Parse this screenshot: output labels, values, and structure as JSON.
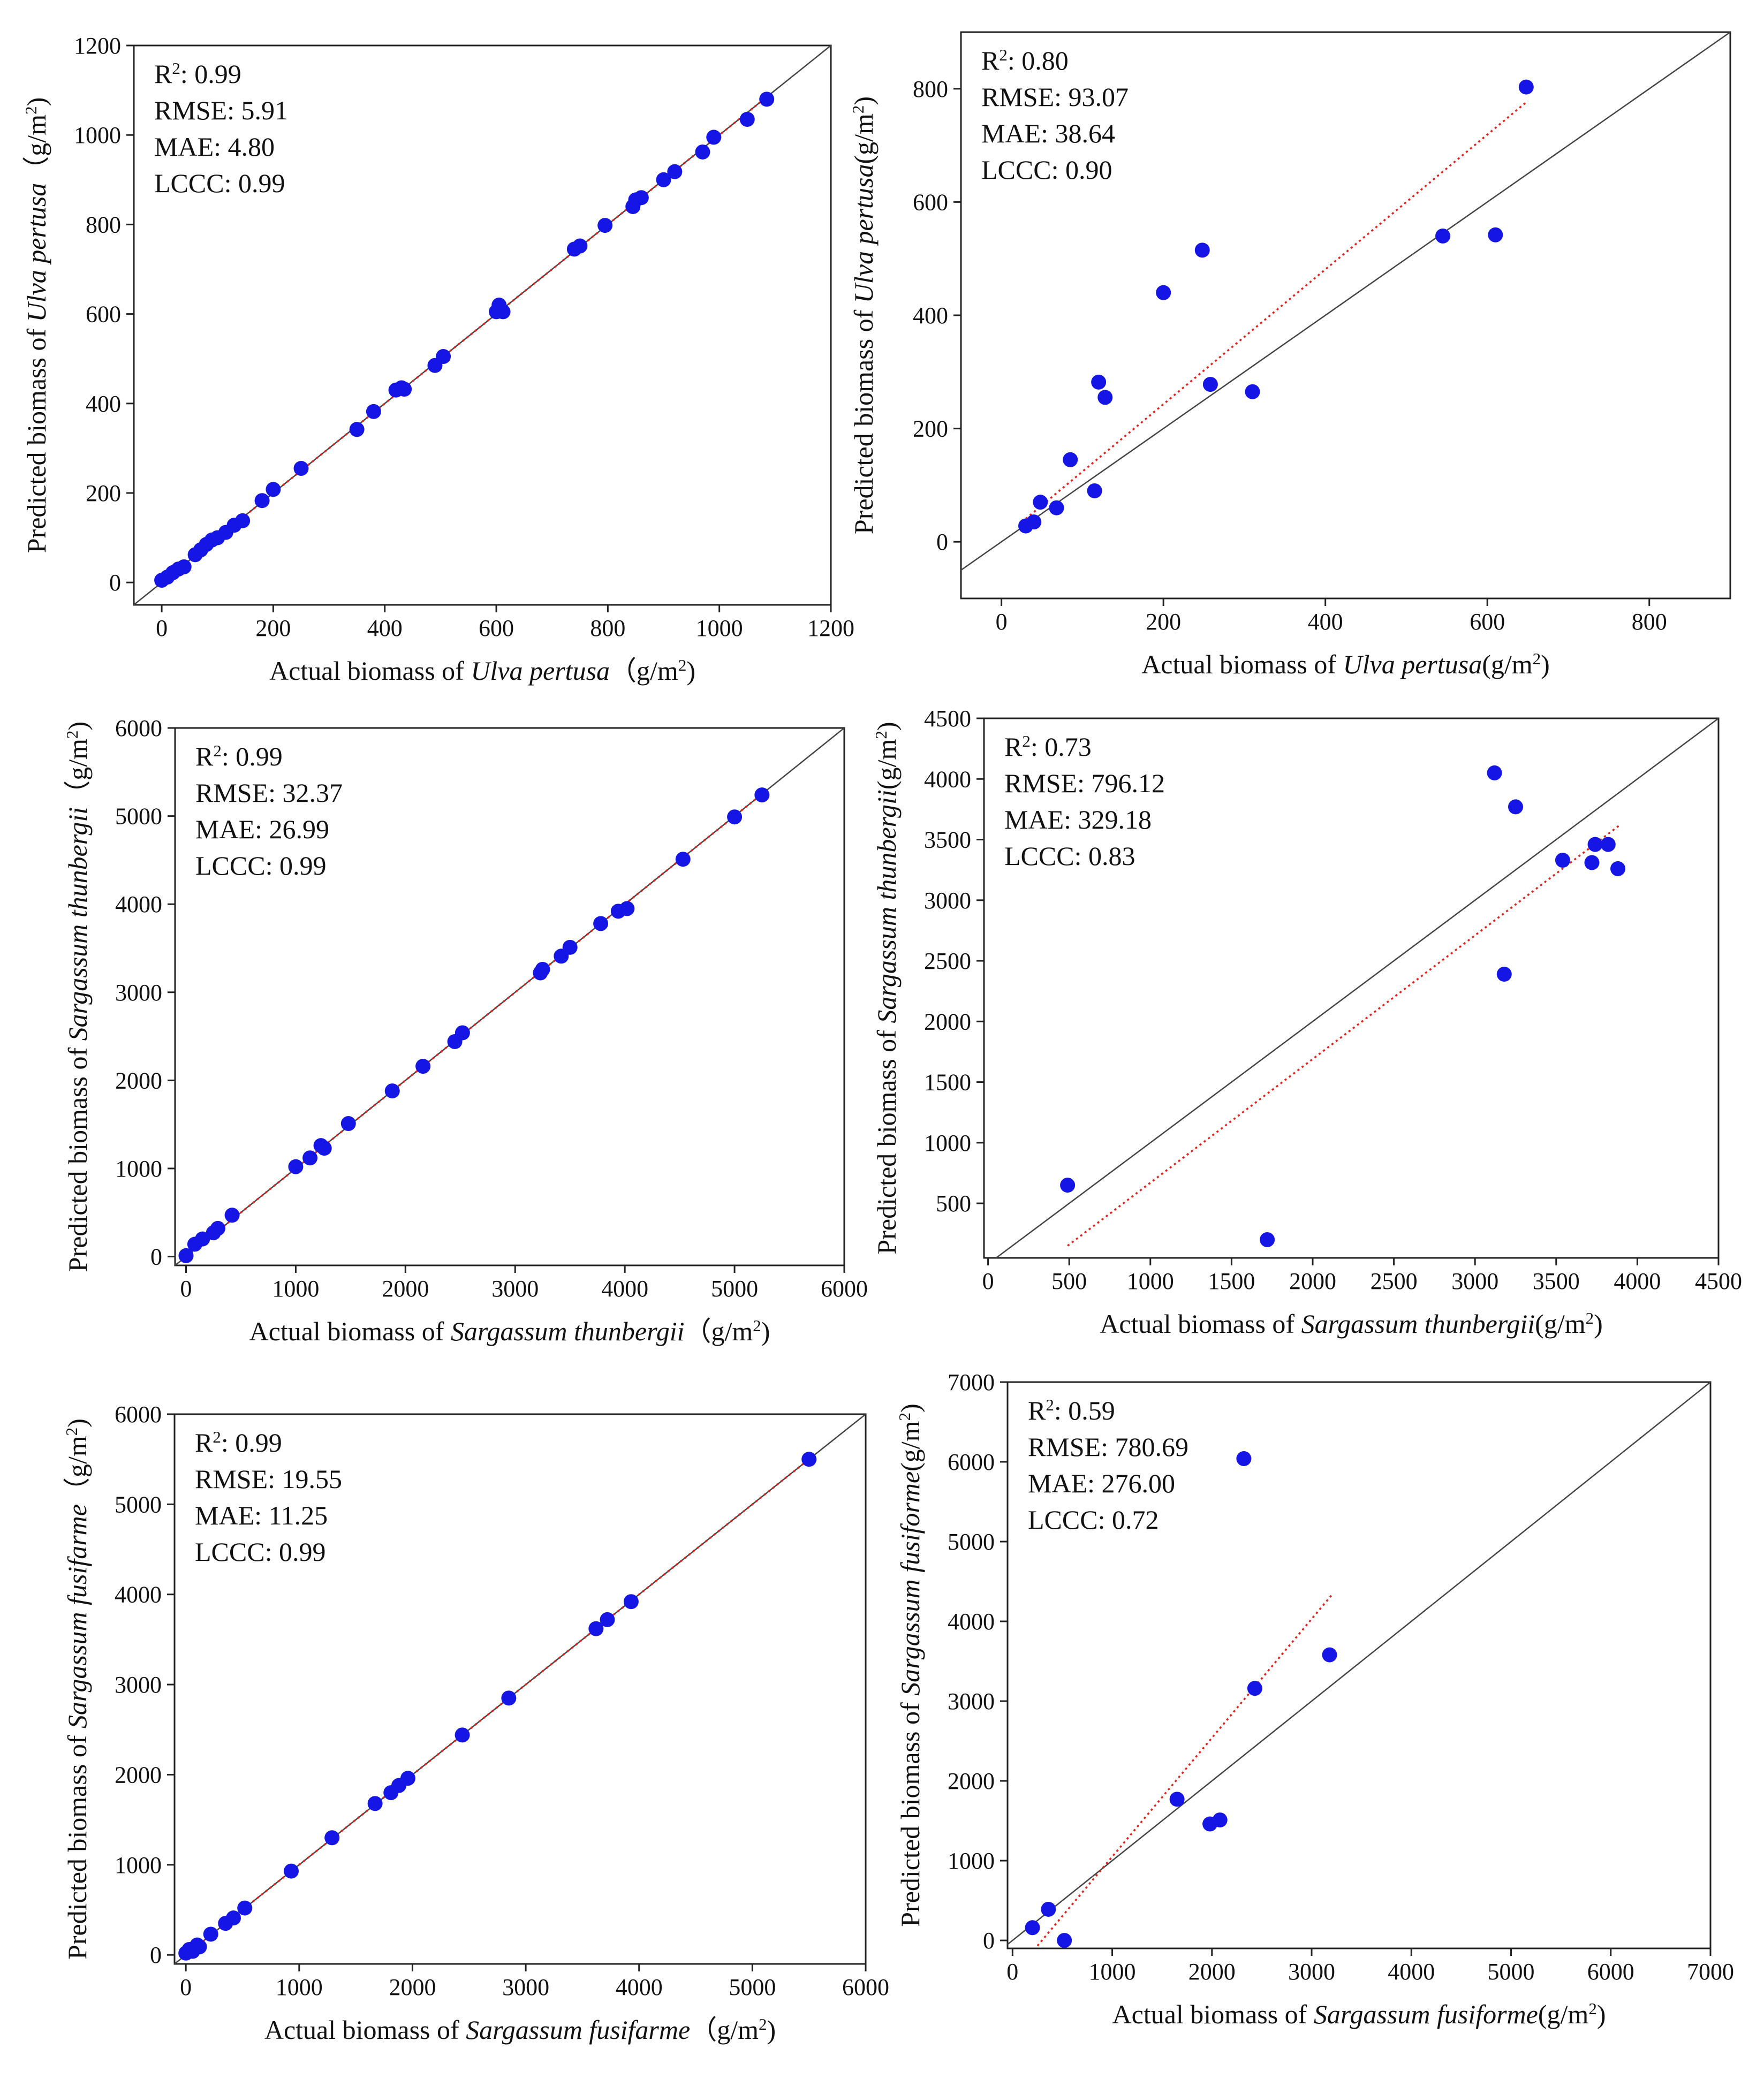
{
  "figure": {
    "description_hidden": ""
  },
  "chart_data": [
    {
      "id": "p1",
      "type": "scatter",
      "xlim": [
        -50,
        1200
      ],
      "ylim": [
        -50,
        1200
      ],
      "xticks": [
        0,
        200,
        400,
        600,
        800,
        1000,
        1200
      ],
      "yticks": [
        0,
        200,
        400,
        600,
        800,
        1000,
        1200
      ],
      "xlabel_pre": "Actual biomass of ",
      "xlabel_species": "Ulva pertusa",
      "xlabel_post": "（g/m",
      "ylabel_pre": "Predicted biomass of ",
      "ylabel_species": "Ulva pertusa",
      "ylabel_post": "（g/m",
      "label_close": ")",
      "stats": {
        "r2_prefix": "R",
        "r2_value": ": 0.99",
        "rmse": "RMSE: 5.91",
        "mae": "MAE: 4.80",
        "lccc": "LCCC: 0.99"
      },
      "fit": {
        "slope": 1.0,
        "intercept": 0,
        "x_range": [
          0,
          1085
        ]
      },
      "x": [
        0,
        10,
        20,
        30,
        40,
        60,
        70,
        80,
        90,
        100,
        115,
        130,
        145,
        180,
        200,
        250,
        350,
        380,
        420,
        430,
        435,
        490,
        505,
        600,
        605,
        608,
        612,
        740,
        750,
        795,
        845,
        850,
        860,
        900,
        920,
        970,
        990,
        1050,
        1085
      ],
      "y": [
        5,
        12,
        22,
        30,
        35,
        62,
        73,
        85,
        95,
        100,
        112,
        128,
        138,
        183,
        208,
        255,
        342,
        382,
        430,
        435,
        432,
        485,
        505,
        605,
        620,
        608,
        605,
        745,
        752,
        798,
        840,
        855,
        860,
        900,
        918,
        962,
        995,
        1035,
        1080
      ]
    },
    {
      "id": "p2",
      "type": "scatter",
      "xlim": [
        -50,
        900
      ],
      "ylim": [
        -100,
        900
      ],
      "xticks": [
        0,
        200,
        400,
        600,
        800
      ],
      "yticks": [
        0,
        200,
        400,
        600,
        800
      ],
      "xlabel_pre": "Actual biomass of ",
      "xlabel_species": "Ulva pertusa",
      "xlabel_post": "(g/m",
      "ylabel_pre": "Predicted biomass of ",
      "ylabel_species": "Ulva pertusa",
      "ylabel_post": "(g/m",
      "label_close": ")",
      "stats": {
        "r2_prefix": "R",
        "r2_value": ": 0.80",
        "rmse": "RMSE: 93.07",
        "mae": "MAE: 38.64",
        "lccc": "LCCC: 0.90"
      },
      "fit": {
        "slope": 1.19,
        "intercept": 5,
        "x_range": [
          30,
          650
        ]
      },
      "x": [
        30,
        40,
        48,
        68,
        85,
        115,
        120,
        128,
        200,
        248,
        258,
        310,
        545,
        610,
        648
      ],
      "y": [
        28,
        35,
        70,
        60,
        145,
        90,
        282,
        255,
        440,
        515,
        278,
        265,
        540,
        542,
        803
      ]
    },
    {
      "id": "p3",
      "type": "scatter",
      "xlim": [
        -100,
        6000
      ],
      "ylim": [
        -100,
        6000
      ],
      "xticks": [
        0,
        1000,
        2000,
        3000,
        4000,
        5000,
        6000
      ],
      "yticks": [
        0,
        1000,
        2000,
        3000,
        4000,
        5000,
        6000
      ],
      "xlabel_pre": "Actual biomass of ",
      "xlabel_species": "Sargassum thunbergii",
      "xlabel_post": "（g/m",
      "ylabel_pre": "Predicted biomass of ",
      "ylabel_species": "Sargassum thunbergii",
      "ylabel_post": "（g/m",
      "label_close": ")",
      "stats": {
        "r2_prefix": "R",
        "r2_value": ": 0.99",
        "rmse": "RMSE: 32.37",
        "mae": "MAE: 26.99",
        "lccc": "LCCC: 0.99"
      },
      "fit": {
        "slope": 1.0,
        "intercept": 0,
        "x_range": [
          0,
          5250
        ]
      },
      "x": [
        0,
        80,
        150,
        250,
        290,
        420,
        1000,
        1130,
        1230,
        1260,
        1480,
        1880,
        2160,
        2450,
        2520,
        3230,
        3250,
        3420,
        3500,
        3780,
        3940,
        4020,
        4530,
        5000,
        5250
      ],
      "y": [
        10,
        140,
        200,
        270,
        320,
        470,
        1020,
        1120,
        1260,
        1230,
        1510,
        1880,
        2160,
        2440,
        2540,
        3220,
        3260,
        3410,
        3510,
        3780,
        3920,
        3950,
        4510,
        4990,
        5240
      ]
    },
    {
      "id": "p4",
      "type": "scatter",
      "xlim": [
        -25,
        4500
      ],
      "ylim": [
        50,
        4500
      ],
      "xticks": [
        0,
        500,
        1000,
        1500,
        2000,
        2500,
        3000,
        3500,
        4000,
        4500
      ],
      "yticks": [
        500,
        1000,
        1500,
        2000,
        2500,
        3000,
        3500,
        4000,
        4500
      ],
      "xlabel_pre": "Actual biomass of ",
      "xlabel_species": "Sargassum thunbergii",
      "xlabel_post": "(g/m",
      "ylabel_pre": "Predicted biomass of ",
      "ylabel_species": "Sargassum thunbergii",
      "ylabel_post": "(g/m",
      "label_close": ")",
      "stats": {
        "r2_prefix": "R",
        "r2_value": ": 0.73",
        "rmse": "RMSE: 796.12",
        "mae": "MAE: 329.18",
        "lccc": "LCCC: 0.83"
      },
      "fit": {
        "slope": 1.02,
        "intercept": -350,
        "x_range": [
          490,
          3900
        ]
      },
      "x": [
        490,
        1720,
        3120,
        3180,
        3250,
        3540,
        3720,
        3740,
        3820,
        3880
      ],
      "y": [
        650,
        200,
        4050,
        2390,
        3770,
        3330,
        3310,
        3460,
        3460,
        3260
      ]
    },
    {
      "id": "p5",
      "type": "scatter",
      "xlim": [
        -100,
        6000
      ],
      "ylim": [
        -100,
        6000
      ],
      "xticks": [
        0,
        1000,
        2000,
        3000,
        4000,
        5000,
        6000
      ],
      "yticks": [
        0,
        1000,
        2000,
        3000,
        4000,
        5000,
        6000
      ],
      "xlabel_pre": "Actual biomass of ",
      "xlabel_species": "Sargassum fusifarme",
      "xlabel_post": "（g/m",
      "ylabel_pre": "Predicted biomass of ",
      "ylabel_species": "Sargassum fusifarme",
      "ylabel_post": "（g/m",
      "label_close": ")",
      "stats": {
        "r2_prefix": "R",
        "r2_value": ": 0.99",
        "rmse": "RMSE: 19.55",
        "mae": "MAE: 11.25",
        "lccc": "LCCC: 0.99"
      },
      "fit": {
        "slope": 1.0,
        "intercept": 0,
        "x_range": [
          0,
          5500
        ]
      },
      "x": [
        0,
        30,
        60,
        80,
        100,
        120,
        220,
        350,
        420,
        520,
        930,
        1290,
        1670,
        1810,
        1880,
        1960,
        2440,
        2850,
        3620,
        3720,
        3930,
        5500
      ],
      "y": [
        20,
        60,
        40,
        80,
        110,
        90,
        230,
        350,
        410,
        520,
        930,
        1300,
        1680,
        1800,
        1880,
        1960,
        2440,
        2850,
        3620,
        3720,
        3920,
        5500
      ]
    },
    {
      "id": "p6",
      "type": "scatter",
      "xlim": [
        -50,
        7000
      ],
      "ylim": [
        -100,
        7000
      ],
      "xticks": [
        0,
        1000,
        2000,
        3000,
        4000,
        5000,
        6000,
        7000
      ],
      "yticks": [
        0,
        1000,
        2000,
        3000,
        4000,
        5000,
        6000,
        7000
      ],
      "xlabel_pre": "Actual biomass of ",
      "xlabel_species": "Sargassum fusiforme",
      "xlabel_post": "(g/m",
      "ylabel_pre": "Predicted biomass of ",
      "ylabel_species": "Sargassum fusiforme",
      "ylabel_post": "(g/m",
      "label_close": ")",
      "stats": {
        "r2_prefix": "R",
        "r2_value": ": 0.59",
        "rmse": "RMSE: 780.69",
        "mae": "MAE: 276.00",
        "lccc": "LCCC: 0.72"
      },
      "fit": {
        "slope": 1.49,
        "intercept": -440,
        "x_range": [
          250,
          3200
        ]
      },
      "x": [
        200,
        360,
        520,
        1650,
        1980,
        2080,
        2320,
        2430,
        3180
      ],
      "y": [
        160,
        390,
        0,
        1770,
        1460,
        1510,
        6040,
        3160,
        3580
      ]
    }
  ]
}
